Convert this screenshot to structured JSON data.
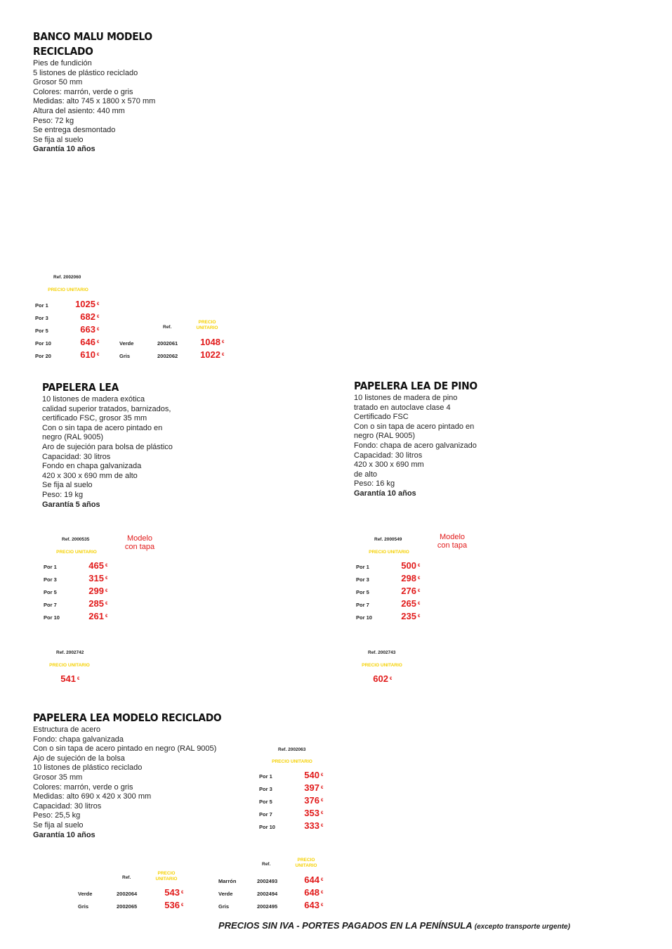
{
  "banco": {
    "title1": "BANCO MALU MODELO",
    "title2": "RECICLADO",
    "lines": [
      "Pies de fundición",
      "5 listones de plástico reciclado",
      "Grosor 50 mm",
      "Colores: marrón, verde o gris",
      "Medidas: alto 745 x 1800 x 570 mm",
      "Altura del asiento: 440 mm",
      "Peso: 72 kg",
      "Se entrega desmontado",
      "Se fija al suelo"
    ],
    "warranty": "Garantía 10 años",
    "ref": "Ref. 2002060",
    "pu": "PRECIO UNITARIO",
    "rows": [
      {
        "label": "Por 1",
        "price": "1025",
        "cur": "€"
      },
      {
        "label": "Por 3",
        "price": "682",
        "cur": "€"
      },
      {
        "label": "Por 5",
        "price": "663",
        "cur": "€"
      },
      {
        "label": "Por 10",
        "price": "646",
        "cur": "€"
      },
      {
        "label": "Por 20",
        "price": "610",
        "cur": "€"
      }
    ],
    "color_ref_header": "Ref.",
    "color_pu_1": "PRECIO",
    "color_pu_2": "UNITARIO",
    "colors": [
      {
        "label": "Verde",
        "ref": "2002061",
        "price": "1048",
        "cur": "€"
      },
      {
        "label": "Gris",
        "ref": "2002062",
        "price": "1022",
        "cur": "€"
      }
    ]
  },
  "lea": {
    "title": "PAPELERA LEA",
    "lines": [
      "10 listones de madera exótica",
      "calidad superior tratados, barnizados,",
      "certificado FSC, grosor 35 mm",
      "Con o sin tapa de acero pintado en",
      "negro (RAL 9005)",
      "Aro de sujeción para bolsa de plástico",
      "Capacidad: 30 litros",
      "Fondo en chapa galvanizada",
      "420 x 300 x 690 mm de alto",
      "Se fija al suelo",
      "Peso: 19 kg"
    ],
    "warranty": "Garantía 5 años",
    "ref": "Ref. 2000535",
    "pu": "PRECIO UNITARIO",
    "modelo1": "Modelo",
    "modelo2": "con tapa",
    "rows": [
      {
        "label": "Por 1",
        "price": "465",
        "cur": "€"
      },
      {
        "label": "Por 3",
        "price": "315",
        "cur": "€"
      },
      {
        "label": "Por 5",
        "price": "299",
        "cur": "€"
      },
      {
        "label": "Por 7",
        "price": "285",
        "cur": "€"
      },
      {
        "label": "Por 10",
        "price": "261",
        "cur": "€"
      }
    ],
    "tapa_ref": "Ref. 2002742",
    "tapa_pu": "PRECIO UNITARIO",
    "tapa_price": "541",
    "tapa_cur": "€"
  },
  "pino": {
    "title": "PAPELERA LEA DE PINO",
    "lines": [
      "10 listones de madera de pino",
      "tratado en autoclave clase 4",
      "Certificado FSC",
      "Con o sin tapa de acero pintado en",
      "negro (RAL 9005)",
      "Fondo: chapa de acero galvanizado",
      "Capacidad: 30 litros",
      "420 x 300 x 690 mm",
      "de alto",
      "Peso: 16 kg"
    ],
    "warranty": "Garantía 10 años",
    "ref": "Ref. 2000549",
    "pu": "PRECIO UNITARIO",
    "modelo1": "Modelo",
    "modelo2": "con tapa",
    "rows": [
      {
        "label": "Por 1",
        "price": "500",
        "cur": "€"
      },
      {
        "label": "Por 3",
        "price": "298",
        "cur": "€"
      },
      {
        "label": "Por 5",
        "price": "276",
        "cur": "€"
      },
      {
        "label": "Por 7",
        "price": "265",
        "cur": "€"
      },
      {
        "label": "Por 10",
        "price": "235",
        "cur": "€"
      }
    ],
    "tapa_ref": "Ref. 2002743",
    "tapa_pu": "PRECIO UNITARIO",
    "tapa_price": "602",
    "tapa_cur": "€"
  },
  "reciclado": {
    "title": "PAPELERA LEA MODELO RECICLADO",
    "lines": [
      "Estructura de acero",
      "Fondo: chapa galvanizada",
      "Con o sin tapa de acero pintado en negro (RAL 9005)",
      "Ajo de sujeción de la bolsa",
      "10 listones de plástico reciclado",
      "Grosor 35 mm",
      "Colores: marrón, verde o gris",
      "Medidas: alto 690 x 420 x 300 mm",
      "Capacidad: 30 litros",
      "Peso: 25,5 kg",
      "Se fija al suelo"
    ],
    "warranty": "Garantía 10 años",
    "ref": "Ref. 2002063",
    "pu": "PRECIO UNITARIO",
    "rows": [
      {
        "label": "Por 1",
        "price": "540",
        "cur": "€"
      },
      {
        "label": "Por 3",
        "price": "397",
        "cur": "€"
      },
      {
        "label": "Por 5",
        "price": "376",
        "cur": "€"
      },
      {
        "label": "Por 7",
        "price": "353",
        "cur": "€"
      },
      {
        "label": "Por 10",
        "price": "333",
        "cur": "€"
      }
    ],
    "left_ref_header": "Ref.",
    "left_pu_1": "PRECIO",
    "left_pu_2": "UNITARIO",
    "left_colors": [
      {
        "label": "Verde",
        "ref": "2002064",
        "price": "543",
        "cur": "€"
      },
      {
        "label": "Gris",
        "ref": "2002065",
        "price": "536",
        "cur": "€"
      }
    ],
    "right_ref_header": "Ref.",
    "right_pu_1": "PRECIO",
    "right_pu_2": "UNITARIO",
    "right_colors": [
      {
        "label": "Marrón",
        "ref": "2002493",
        "price": "644",
        "cur": "€"
      },
      {
        "label": "Verde",
        "ref": "2002494",
        "price": "648",
        "cur": "€"
      },
      {
        "label": "Gris",
        "ref": "2002495",
        "price": "643",
        "cur": "€"
      }
    ]
  },
  "footer": {
    "main": "PRECIOS SIN IVA - PORTES PAGADOS EN LA PENÍNSULA",
    "note": "(excepto transporte urgente)"
  }
}
